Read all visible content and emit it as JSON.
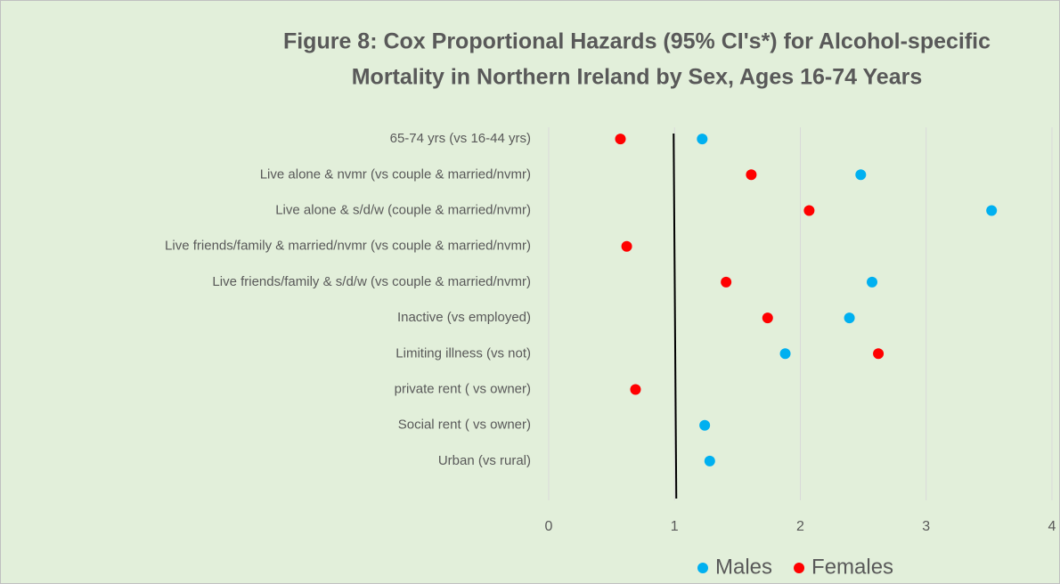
{
  "chart_data": {
    "type": "dot",
    "title": [
      "Figure 8: Cox Proportional Hazards (95% CI's*) for Alcohol-specific",
      "Mortality in Northern Ireland by Sex, Ages 16-74  Years"
    ],
    "categories": [
      "65-74 yrs (vs 16-44 yrs)",
      "Live alone & nvmr (vs couple & married/nvmr)",
      "Live alone & s/d/w (couple & married/nvmr)",
      "Live friends/family & married/nvmr (vs couple & married/nvmr)",
      "Live friends/family & s/d/w (vs couple & married/nvmr)",
      "Inactive (vs employed)",
      "Limiting illness (vs not)",
      "private rent ( vs owner)",
      "Social rent ( vs owner)",
      "Urban (vs rural)"
    ],
    "series": [
      {
        "name": "Males",
        "color": "#00b0f0",
        "values": [
          1.22,
          2.48,
          3.52,
          null,
          2.57,
          2.39,
          1.88,
          null,
          1.24,
          1.28
        ]
      },
      {
        "name": "Females",
        "color": "#ff0000",
        "values": [
          0.57,
          1.61,
          2.07,
          0.62,
          1.41,
          1.74,
          2.62,
          0.69,
          null,
          null
        ]
      }
    ],
    "xlim": [
      0,
      4
    ],
    "xticks": [
      0,
      1,
      2,
      3,
      4
    ],
    "grid": true,
    "reference_line": 1,
    "legend": "bottom"
  }
}
